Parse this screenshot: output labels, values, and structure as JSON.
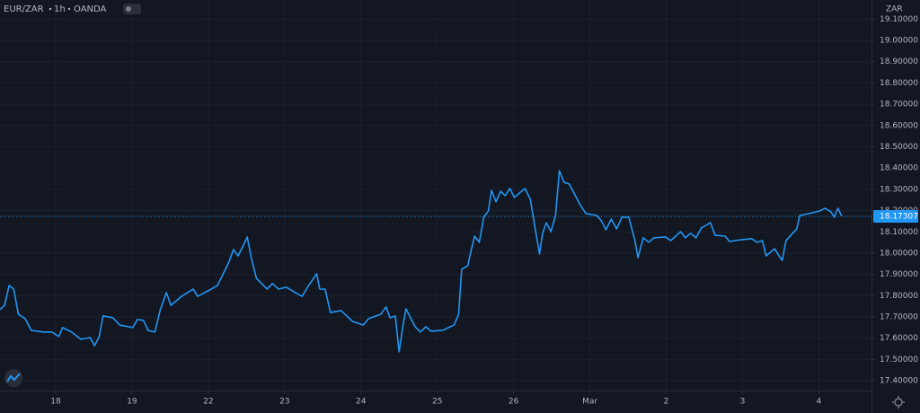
{
  "chart_data": {
    "type": "line",
    "symbol": "EUR/ZAR",
    "interval": "1h",
    "source": "OANDA",
    "currency": "ZAR",
    "color": "#2196f3",
    "grid": true,
    "x": [
      -0.73,
      -0.67,
      -0.61,
      -0.55,
      -0.49,
      -0.4,
      -0.32,
      -0.16,
      -0.05,
      0.04,
      0.09,
      0.21,
      0.33,
      0.45,
      0.51,
      0.57,
      0.62,
      0.75,
      0.84,
      1.01,
      1.07,
      1.15,
      1.21,
      1.3,
      1.37,
      1.45,
      1.51,
      1.65,
      1.8,
      1.86,
      2.04,
      2.12,
      2.27,
      2.33,
      2.39,
      2.45,
      2.51,
      2.57,
      2.63,
      2.77,
      2.84,
      2.92,
      3.02,
      3.16,
      3.23,
      3.3,
      3.42,
      3.46,
      3.53,
      3.6,
      3.74,
      3.89,
      4.03,
      4.1,
      4.26,
      4.33,
      4.38,
      4.45,
      4.5,
      4.55,
      4.59,
      4.71,
      4.78,
      4.85,
      4.92,
      5.07,
      5.22,
      5.28,
      5.32,
      5.4,
      5.44,
      5.49,
      5.55,
      5.61,
      5.67,
      5.71,
      5.77,
      5.83,
      5.89,
      5.95,
      6.01,
      6.15,
      6.22,
      6.27,
      6.34,
      6.38,
      6.43,
      6.49,
      6.55,
      6.6,
      6.66,
      6.73,
      6.81,
      6.87,
      6.95,
      7.09,
      7.15,
      7.21,
      7.28,
      7.35,
      7.42,
      7.51,
      7.59,
      7.63,
      7.7,
      7.77,
      7.84,
      7.99,
      8.06,
      8.19,
      8.25,
      8.32,
      8.39,
      8.46,
      8.58,
      8.64,
      8.77,
      8.83,
      8.98,
      9.12,
      9.19,
      9.26,
      9.31,
      9.42,
      9.47,
      9.52,
      9.57,
      9.71,
      9.75,
      9.87,
      10.01,
      10.08,
      10.16,
      10.2,
      10.25,
      10.3
    ],
    "values": [
      17.734,
      17.755,
      17.848,
      17.831,
      17.713,
      17.692,
      17.637,
      17.629,
      17.629,
      17.608,
      17.65,
      17.629,
      17.595,
      17.603,
      17.565,
      17.608,
      17.705,
      17.696,
      17.662,
      17.65,
      17.688,
      17.684,
      17.637,
      17.629,
      17.734,
      17.814,
      17.755,
      17.797,
      17.831,
      17.797,
      17.831,
      17.848,
      17.958,
      18.017,
      17.987,
      18.03,
      18.076,
      17.966,
      17.882,
      17.831,
      17.857,
      17.831,
      17.84,
      17.81,
      17.797,
      17.84,
      17.903,
      17.831,
      17.831,
      17.721,
      17.73,
      17.679,
      17.662,
      17.692,
      17.713,
      17.747,
      17.696,
      17.705,
      17.536,
      17.658,
      17.738,
      17.654,
      17.629,
      17.654,
      17.633,
      17.637,
      17.662,
      17.713,
      17.924,
      17.941,
      18.008,
      18.08,
      18.051,
      18.169,
      18.198,
      18.295,
      18.241,
      18.291,
      18.27,
      18.304,
      18.262,
      18.304,
      18.253,
      18.143,
      17.996,
      18.093,
      18.143,
      18.101,
      18.177,
      18.388,
      18.333,
      18.325,
      18.27,
      18.228,
      18.186,
      18.177,
      18.152,
      18.11,
      18.16,
      18.114,
      18.169,
      18.169,
      18.059,
      17.979,
      18.072,
      18.051,
      18.072,
      18.076,
      18.059,
      18.101,
      18.072,
      18.093,
      18.072,
      18.118,
      18.143,
      18.084,
      18.08,
      18.055,
      18.063,
      18.068,
      18.051,
      18.059,
      17.987,
      18.021,
      17.992,
      17.966,
      18.059,
      18.114,
      18.177,
      18.186,
      18.198,
      18.211,
      18.194,
      18.169,
      18.211,
      18.173
    ],
    "last_price": 18.17307,
    "xlim": [
      -0.73,
      10.69
    ],
    "xticks": [
      {
        "value": 0,
        "label": "18"
      },
      {
        "value": 1,
        "label": "19"
      },
      {
        "value": 2,
        "label": "22"
      },
      {
        "value": 3,
        "label": "23"
      },
      {
        "value": 4,
        "label": "24"
      },
      {
        "value": 5,
        "label": "25"
      },
      {
        "value": 6,
        "label": "26"
      },
      {
        "value": 7,
        "label": "Mar"
      },
      {
        "value": 8,
        "label": "2"
      },
      {
        "value": 9,
        "label": "3"
      },
      {
        "value": 10,
        "label": "4"
      }
    ],
    "ylim": [
      17.354,
      19.19
    ],
    "yticks": [
      {
        "value": 17.4,
        "label": "17.40000"
      },
      {
        "value": 17.5,
        "label": "17.50000"
      },
      {
        "value": 17.6,
        "label": "17.60000"
      },
      {
        "value": 17.7,
        "label": "17.70000"
      },
      {
        "value": 17.8,
        "label": "17.80000"
      },
      {
        "value": 17.9,
        "label": "17.90000"
      },
      {
        "value": 18.0,
        "label": "18.00000"
      },
      {
        "value": 18.1,
        "label": "18.10000"
      },
      {
        "value": 18.2,
        "label": "18.20000"
      },
      {
        "value": 18.3,
        "label": "18.30000"
      },
      {
        "value": 18.4,
        "label": "18.40000"
      },
      {
        "value": 18.5,
        "label": "18.50000"
      },
      {
        "value": 18.6,
        "label": "18.60000"
      },
      {
        "value": 18.7,
        "label": "18.70000"
      },
      {
        "value": 18.8,
        "label": "18.80000"
      },
      {
        "value": 18.9,
        "label": "18.90000"
      },
      {
        "value": 19.0,
        "label": "19.00000"
      },
      {
        "value": 19.1,
        "label": "19.10000"
      }
    ]
  }
}
